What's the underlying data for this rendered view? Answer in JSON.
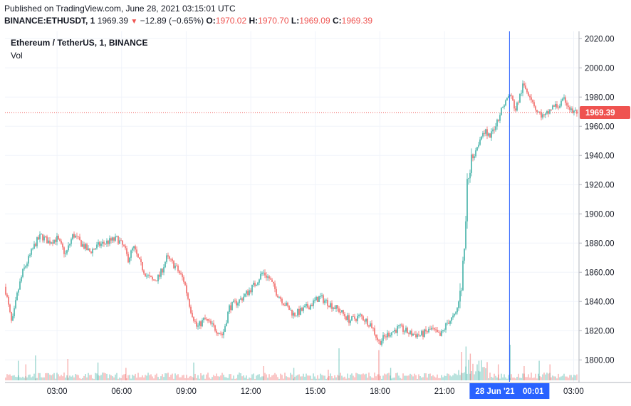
{
  "header": {
    "published": "Published on TradingView.com, June 28, 2021 03:15:01 UTC",
    "symbol": "BINANCE:ETHUSDT, 1",
    "last": "1969.39",
    "change_arrow": "▼",
    "change": "−12.89 (−0.65%)",
    "o_label": "O:",
    "o_value": "1970.02",
    "h_label": "H:",
    "h_value": "1970.70",
    "l_label": "L:",
    "l_value": "1969.09",
    "c_label": "C:",
    "c_value": "1969.39"
  },
  "legend": {
    "title": "Ethereum / TetherUS, 1, BINANCE",
    "volume_label": "Vol"
  },
  "colors": {
    "up": "#26a69a",
    "down": "#ef5350",
    "crosshair": "#2962ff",
    "price_line": "#ef5350",
    "grid": "#f0f3fa"
  },
  "chart_data": {
    "type": "candlestick",
    "title": "Ethereum / TetherUS, 1, BINANCE",
    "symbol": "BINANCE:ETHUSDT",
    "interval": "1",
    "ylim": [
      1785,
      2025
    ],
    "yticks": [
      2020,
      2000,
      1980,
      1960,
      1940,
      1920,
      1900,
      1880,
      1860,
      1840,
      1820,
      1800
    ],
    "ytick_labels": [
      "2020.00",
      "2000.00",
      "1980.00",
      "1960.00",
      "1940.00",
      "1920.00",
      "1900.00",
      "1880.00",
      "1860.00",
      "1840.00",
      "1820.00",
      "1800.00"
    ],
    "xlim": [
      0.58,
      27.25
    ],
    "xticks": [
      3,
      6,
      9,
      12,
      15,
      18,
      21,
      27
    ],
    "xtick_labels": [
      "03:00",
      "06:00",
      "09:00",
      "12:00",
      "15:00",
      "18:00",
      "21:00",
      "03:00"
    ],
    "crosshair_x": 24.02,
    "crosshair_label": "28 Jun '21",
    "crosshair_time": "00:01",
    "last_price": 1969.39,
    "last_price_label": "1969.39",
    "grid": true,
    "close_path": [
      {
        "x": 0.58,
        "y": 1850
      },
      {
        "x": 0.9,
        "y": 1824
      },
      {
        "x": 1.15,
        "y": 1845
      },
      {
        "x": 1.4,
        "y": 1860
      },
      {
        "x": 1.7,
        "y": 1870
      },
      {
        "x": 2.0,
        "y": 1880
      },
      {
        "x": 2.25,
        "y": 1885
      },
      {
        "x": 2.6,
        "y": 1881
      },
      {
        "x": 3.0,
        "y": 1883
      },
      {
        "x": 3.4,
        "y": 1872
      },
      {
        "x": 3.75,
        "y": 1886
      },
      {
        "x": 4.1,
        "y": 1880
      },
      {
        "x": 4.5,
        "y": 1874
      },
      {
        "x": 5.0,
        "y": 1879
      },
      {
        "x": 5.4,
        "y": 1881
      },
      {
        "x": 5.8,
        "y": 1883
      },
      {
        "x": 6.1,
        "y": 1877
      },
      {
        "x": 6.3,
        "y": 1869
      },
      {
        "x": 6.55,
        "y": 1877
      },
      {
        "x": 6.85,
        "y": 1866
      },
      {
        "x": 7.15,
        "y": 1858
      },
      {
        "x": 7.45,
        "y": 1854
      },
      {
        "x": 7.75,
        "y": 1857
      },
      {
        "x": 8.1,
        "y": 1870
      },
      {
        "x": 8.5,
        "y": 1864
      },
      {
        "x": 8.9,
        "y": 1854
      },
      {
        "x": 9.2,
        "y": 1835
      },
      {
        "x": 9.5,
        "y": 1822
      },
      {
        "x": 9.85,
        "y": 1828
      },
      {
        "x": 10.3,
        "y": 1822
      },
      {
        "x": 10.7,
        "y": 1817
      },
      {
        "x": 11.0,
        "y": 1836
      },
      {
        "x": 11.5,
        "y": 1841
      },
      {
        "x": 11.9,
        "y": 1847
      },
      {
        "x": 12.2,
        "y": 1852
      },
      {
        "x": 12.55,
        "y": 1860
      },
      {
        "x": 12.85,
        "y": 1856
      },
      {
        "x": 13.2,
        "y": 1846
      },
      {
        "x": 13.6,
        "y": 1838
      },
      {
        "x": 14.0,
        "y": 1831
      },
      {
        "x": 14.4,
        "y": 1834
      },
      {
        "x": 14.8,
        "y": 1838
      },
      {
        "x": 15.2,
        "y": 1843
      },
      {
        "x": 15.7,
        "y": 1838
      },
      {
        "x": 16.1,
        "y": 1834
      },
      {
        "x": 16.6,
        "y": 1827
      },
      {
        "x": 17.1,
        "y": 1830
      },
      {
        "x": 17.6,
        "y": 1824
      },
      {
        "x": 17.95,
        "y": 1812
      },
      {
        "x": 18.4,
        "y": 1818
      },
      {
        "x": 18.9,
        "y": 1822
      },
      {
        "x": 19.4,
        "y": 1818
      },
      {
        "x": 19.9,
        "y": 1817
      },
      {
        "x": 20.4,
        "y": 1821
      },
      {
        "x": 20.8,
        "y": 1816
      },
      {
        "x": 21.15,
        "y": 1826
      },
      {
        "x": 21.5,
        "y": 1830
      },
      {
        "x": 21.75,
        "y": 1845
      },
      {
        "x": 21.95,
        "y": 1880
      },
      {
        "x": 22.05,
        "y": 1920
      },
      {
        "x": 22.25,
        "y": 1937
      },
      {
        "x": 22.5,
        "y": 1946
      },
      {
        "x": 22.8,
        "y": 1958
      },
      {
        "x": 23.1,
        "y": 1952
      },
      {
        "x": 23.45,
        "y": 1964
      },
      {
        "x": 23.75,
        "y": 1975
      },
      {
        "x": 24.05,
        "y": 1982
      },
      {
        "x": 24.3,
        "y": 1971
      },
      {
        "x": 24.65,
        "y": 1988
      },
      {
        "x": 25.0,
        "y": 1981
      },
      {
        "x": 25.3,
        "y": 1970
      },
      {
        "x": 25.65,
        "y": 1966
      },
      {
        "x": 26.0,
        "y": 1973
      },
      {
        "x": 26.3,
        "y": 1974
      },
      {
        "x": 26.6,
        "y": 1978
      },
      {
        "x": 26.9,
        "y": 1970
      },
      {
        "x": 27.25,
        "y": 1969.39
      }
    ],
    "volume_spikes": [
      {
        "x": 1.2,
        "v": 0.55
      },
      {
        "x": 1.55,
        "v": 0.45
      },
      {
        "x": 2.0,
        "v": 0.7
      },
      {
        "x": 3.5,
        "v": 0.6
      },
      {
        "x": 4.9,
        "v": 0.5
      },
      {
        "x": 6.2,
        "v": 0.35
      },
      {
        "x": 9.35,
        "v": 0.5
      },
      {
        "x": 12.6,
        "v": 0.4
      },
      {
        "x": 14.0,
        "v": 0.35
      },
      {
        "x": 15.6,
        "v": 0.3
      },
      {
        "x": 16.1,
        "v": 0.9
      },
      {
        "x": 17.95,
        "v": 0.85
      },
      {
        "x": 18.5,
        "v": 0.35
      },
      {
        "x": 21.8,
        "v": 0.8
      },
      {
        "x": 22.0,
        "v": 0.95
      },
      {
        "x": 22.2,
        "v": 0.75
      },
      {
        "x": 22.6,
        "v": 0.55
      },
      {
        "x": 23.5,
        "v": 0.45
      },
      {
        "x": 24.05,
        "v": 1.0
      },
      {
        "x": 24.7,
        "v": 0.4
      },
      {
        "x": 25.4,
        "v": 0.55
      },
      {
        "x": 25.9,
        "v": 0.45
      }
    ]
  }
}
